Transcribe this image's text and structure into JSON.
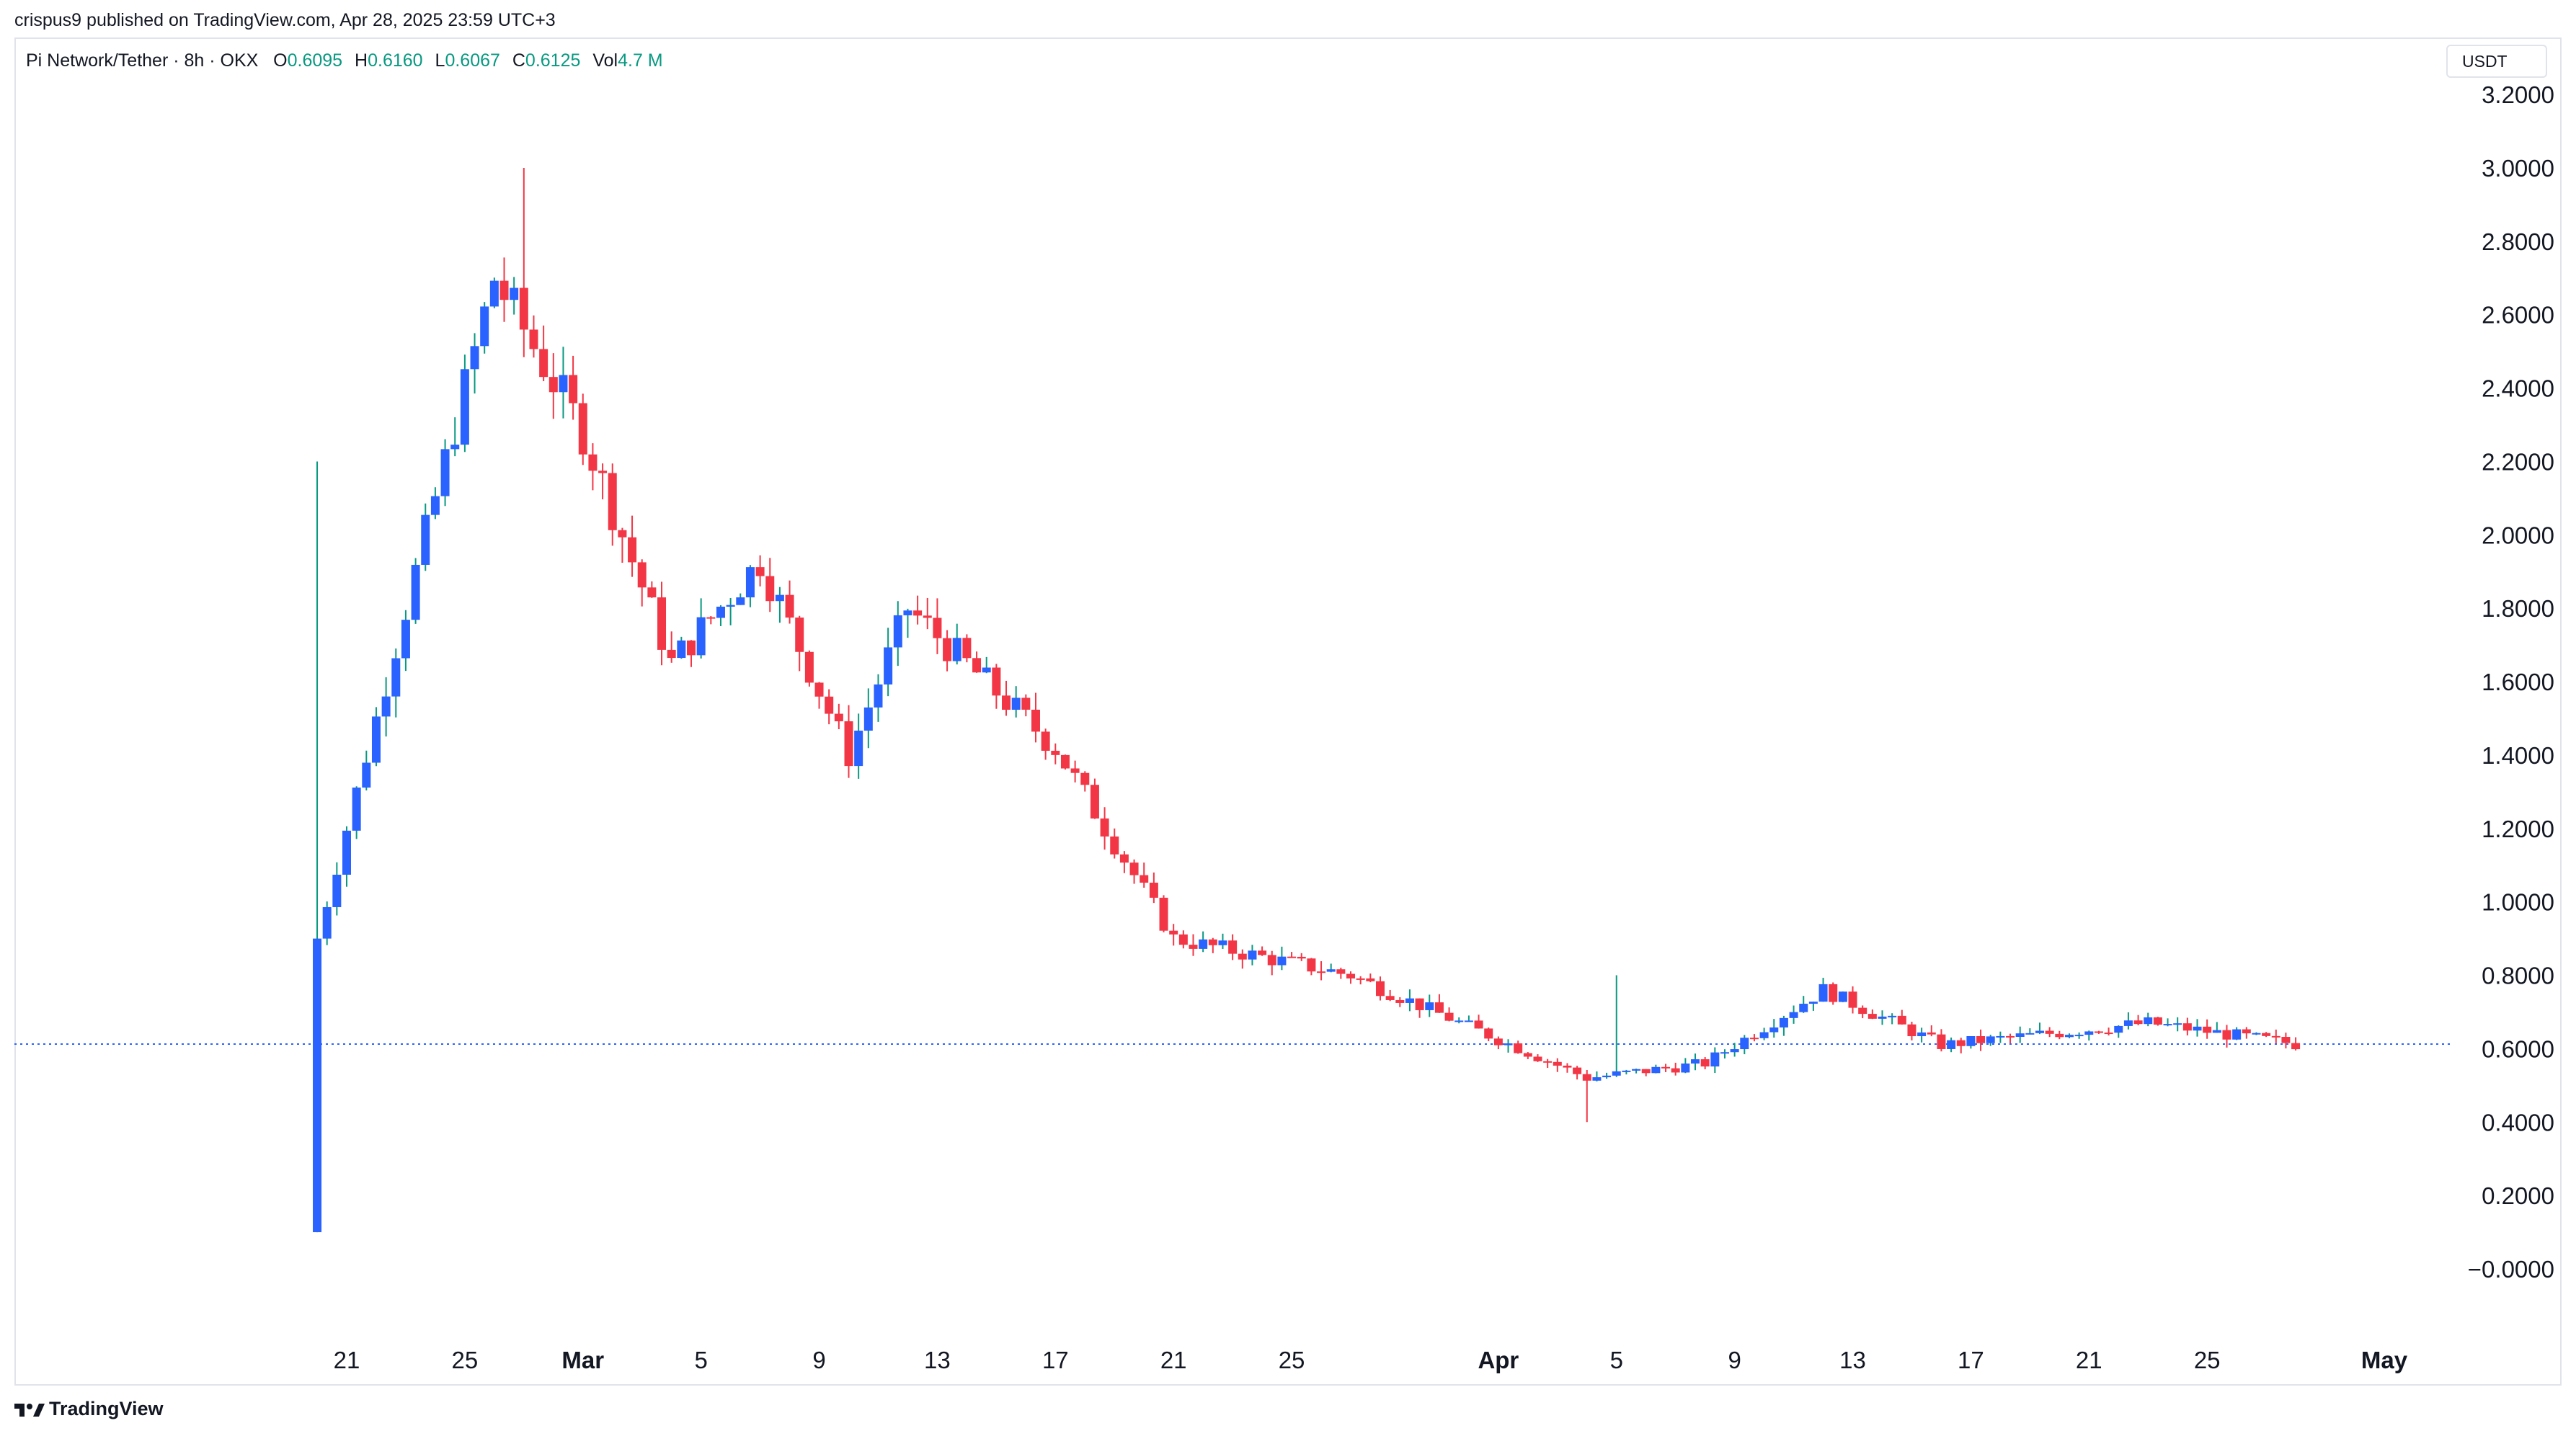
{
  "header": {
    "published_line": "crispus9 published on TradingView.com, Apr 28, 2025 23:59 UTC+3"
  },
  "legend": {
    "symbol": "Pi Network/Tether · 8h · OKX",
    "o_label": "O",
    "o_value": "0.6095",
    "h_label": "H",
    "h_value": "0.6160",
    "l_label": "L",
    "l_value": "0.6067",
    "c_label": "C",
    "c_value": "0.6125",
    "vol_label": "Vol",
    "vol_value": "4.7 M"
  },
  "unit_label": "USDT",
  "brand": {
    "name": "TradingView",
    "icon": "tradingview-logo-icon"
  },
  "colors": {
    "up": "#2962ff",
    "down": "#f23645",
    "price_line": "#2962ff",
    "legend_value": "#089981"
  },
  "chart_data": {
    "type": "candlestick",
    "y_ticks": [
      "3.2000",
      "3.0000",
      "2.8000",
      "2.6000",
      "2.4000",
      "2.2000",
      "2.0000",
      "1.8000",
      "1.6000",
      "1.4000",
      "1.2000",
      "1.0000",
      "0.8000",
      "0.6000",
      "0.4000",
      "0.2000",
      "−0.0000"
    ],
    "ylim": [
      -0.15,
      3.3
    ],
    "x_ticks": [
      {
        "label": "21",
        "day": 21
      },
      {
        "label": "25",
        "day": 25
      },
      {
        "label": "Mar",
        "day": 29,
        "bold": true
      },
      {
        "label": "5",
        "day": 33
      },
      {
        "label": "9",
        "day": 37
      },
      {
        "label": "13",
        "day": 41
      },
      {
        "label": "17",
        "day": 45
      },
      {
        "label": "21",
        "day": 49
      },
      {
        "label": "25",
        "day": 53
      },
      {
        "label": "Apr",
        "day": 60,
        "bold": true
      },
      {
        "label": "5",
        "day": 64
      },
      {
        "label": "9",
        "day": 68
      },
      {
        "label": "13",
        "day": 72
      },
      {
        "label": "17",
        "day": 76
      },
      {
        "label": "21",
        "day": 80
      },
      {
        "label": "25",
        "day": 84
      },
      {
        "label": "May",
        "day": 90,
        "bold": true
      }
    ],
    "x_axis_note": "day = days counted from Feb 1, 2025",
    "current_price": 0.6125,
    "key_prices": [
      {
        "date": "Feb 20",
        "close": 0.9,
        "low": 0.1,
        "high": 2.2
      },
      {
        "date": "Feb 26",
        "close": 2.7
      },
      {
        "date": "Feb 27",
        "high": 3.0
      },
      {
        "date": "Mar 1",
        "close": 2.28
      },
      {
        "date": "Mar 4",
        "close": 1.65
      },
      {
        "date": "Mar 7",
        "close": 1.93
      },
      {
        "date": "Mar 10",
        "close": 1.4
      },
      {
        "date": "Mar 12",
        "close": 1.8
      },
      {
        "date": "Mar 17",
        "close": 1.42
      },
      {
        "date": "Mar 21",
        "close": 0.9
      },
      {
        "date": "Mar 27",
        "close": 0.8
      },
      {
        "date": "Apr 4",
        "close": 0.52,
        "low": 0.4
      },
      {
        "date": "Apr 5",
        "high": 0.8
      },
      {
        "date": "Apr 8",
        "close": 0.56
      },
      {
        "date": "Apr 12",
        "close": 0.76
      },
      {
        "date": "Apr 16",
        "close": 0.61
      },
      {
        "date": "Apr 23",
        "close": 0.67
      },
      {
        "date": "Apr 28",
        "close": 0.6125
      }
    ]
  }
}
